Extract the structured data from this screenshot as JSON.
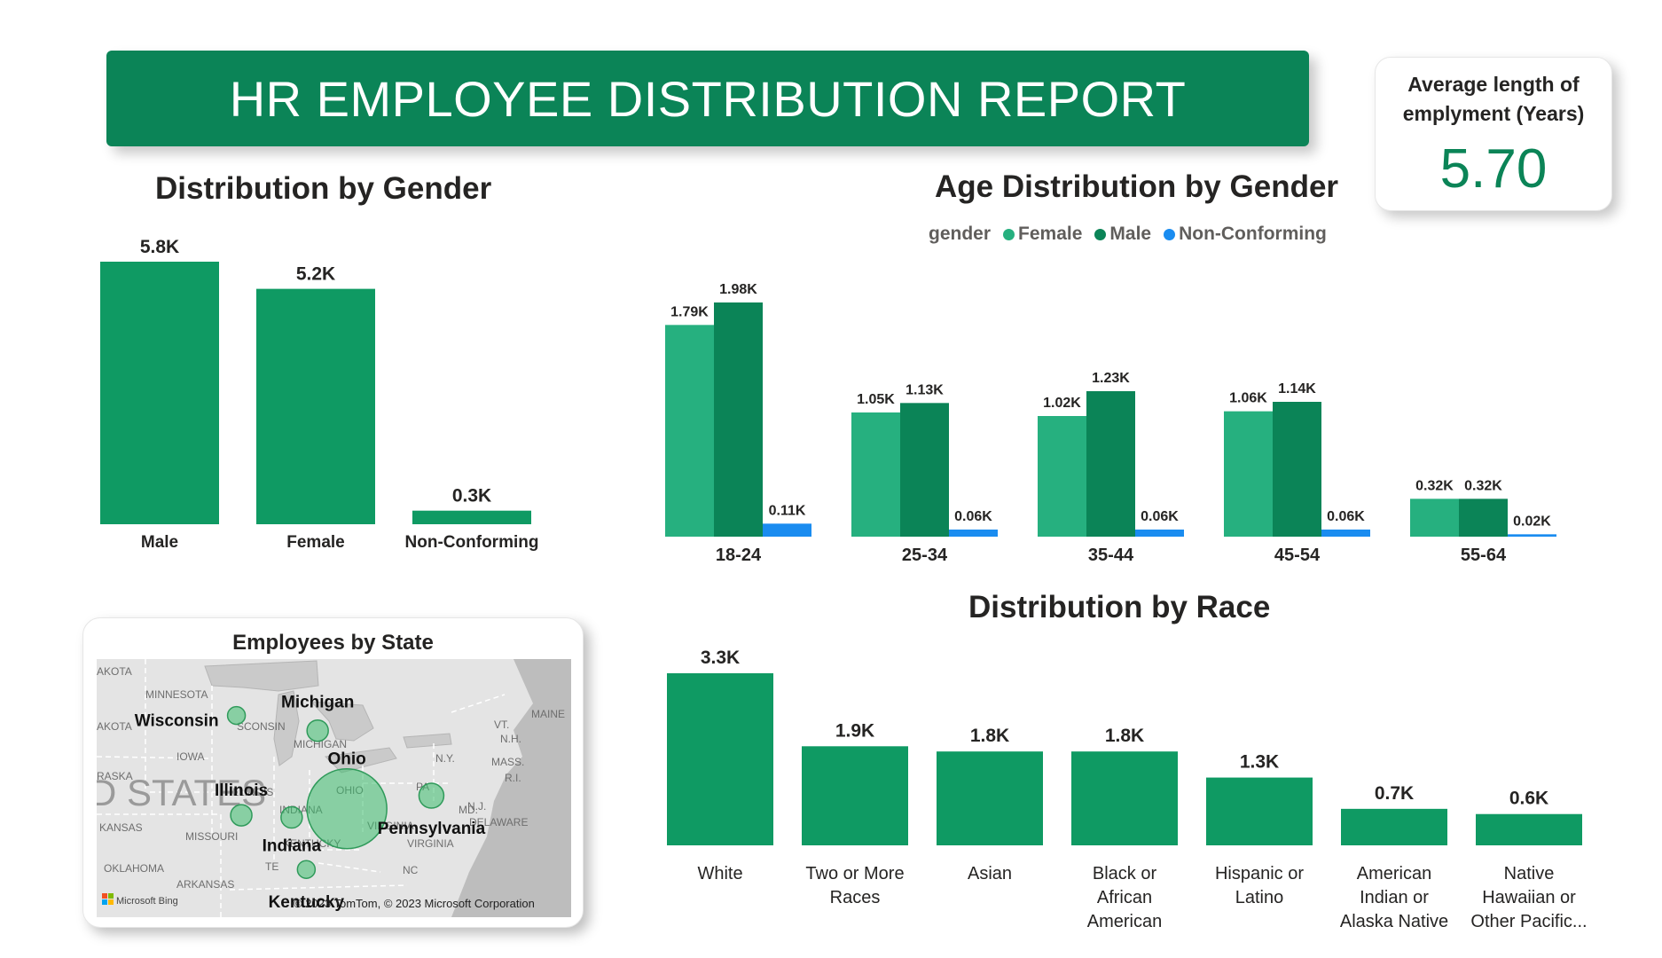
{
  "header": {
    "title": "HR EMPLOYEE DISTRIBUTION REPORT"
  },
  "kpi": {
    "label": "Average length of emplyment (Years)",
    "value": "5.70"
  },
  "colors": {
    "primary": "#0f9a63",
    "female": "#26b07f",
    "male": "#0b8457",
    "nonconforming": "#1a8cf0",
    "banner": "#0b8457"
  },
  "chart_data": [
    {
      "id": "gender",
      "type": "bar",
      "title": "Distribution by Gender",
      "categories": [
        "Male",
        "Female",
        "Non-Conforming"
      ],
      "values": [
        5.8,
        5.2,
        0.3
      ],
      "labels": [
        "5.8K",
        "5.2K",
        "0.3K"
      ],
      "units": "K employees",
      "ylim": [
        0,
        5.8
      ],
      "grid": false
    },
    {
      "id": "age",
      "type": "bar",
      "title": "Age Distribution by Gender",
      "legend_title": "gender",
      "legend_position": "top-right",
      "categories": [
        "18-24",
        "25-34",
        "35-44",
        "45-54",
        "55-64"
      ],
      "series": [
        {
          "name": "Female",
          "values": [
            1.79,
            1.05,
            1.02,
            1.06,
            0.32
          ],
          "labels": [
            "1.79K",
            "1.05K",
            "1.02K",
            "1.06K",
            "0.32K"
          ]
        },
        {
          "name": "Male",
          "values": [
            1.98,
            1.13,
            1.23,
            1.14,
            0.32
          ],
          "labels": [
            "1.98K",
            "1.13K",
            "1.23K",
            "1.14K",
            "0.32K"
          ]
        },
        {
          "name": "Non-Conforming",
          "values": [
            0.11,
            0.06,
            0.06,
            0.06,
            0.02
          ],
          "labels": [
            "0.11K",
            "0.06K",
            "0.06K",
            "0.06K",
            "0.02K"
          ]
        }
      ],
      "ylim": [
        0,
        1.98
      ],
      "grid": false
    },
    {
      "id": "race",
      "type": "bar",
      "title": "Distribution by Race",
      "categories": [
        "White",
        "Two or More Races",
        "Asian",
        "Black or African American",
        "Hispanic or Latino",
        "American Indian or Alaska Native",
        "Native Hawaiian or Other Pacific..."
      ],
      "category_lines": [
        [
          "White"
        ],
        [
          "Two or More",
          "Races"
        ],
        [
          "Asian"
        ],
        [
          "Black or",
          "African",
          "American"
        ],
        [
          "Hispanic or",
          "Latino"
        ],
        [
          "American",
          "Indian or",
          "Alaska Native"
        ],
        [
          "Native",
          "Hawaiian or",
          "Other Pacific..."
        ]
      ],
      "values": [
        3.3,
        1.9,
        1.8,
        1.8,
        1.3,
        0.7,
        0.6
      ],
      "labels": [
        "3.3K",
        "1.9K",
        "1.8K",
        "1.8K",
        "1.3K",
        "0.7K",
        "0.6K"
      ],
      "ylim": [
        0,
        3.3
      ],
      "grid": false
    }
  ],
  "map": {
    "title": "Employees by State",
    "attribution": "© 2023 TomTom, © 2023 Microsoft Corporation",
    "brand": "Microsoft Bing",
    "big_label": "D STATES",
    "states": [
      {
        "name": "Michigan",
        "lon": -84.6,
        "lat": 43.9
      },
      {
        "name": "Wisconsin",
        "lon": -89.6,
        "lat": 44.6
      },
      {
        "name": "Ohio",
        "lon": -82.8,
        "lat": 40.3
      },
      {
        "name": "Illinois",
        "lon": -89.3,
        "lat": 40.0
      },
      {
        "name": "Indiana",
        "lon": -86.2,
        "lat": 39.9
      },
      {
        "name": "Pennsylvania",
        "lon": -77.6,
        "lat": 40.9
      },
      {
        "name": "Kentucky",
        "lon": -85.3,
        "lat": 37.5
      }
    ],
    "base_labels": [
      "AKOTA",
      "MINNESOTA",
      "AKOTA",
      "SCONSIN",
      "MICHIGAN",
      "IOWA",
      "RASKA",
      "ILLINOIS",
      "INDIANA",
      "OHIO",
      "PA",
      "KANSAS",
      "MISSOURI",
      "KENTUCKY",
      "VIRGINIA",
      "VIRGINIA",
      "MAINE",
      "VT.",
      "N.H.",
      "N.Y.",
      "MASS.",
      "R.I.",
      "MD.",
      "N.J.",
      "DELAWARE",
      "OKLAHOMA",
      "ARKANSAS",
      "TE",
      "NC"
    ]
  }
}
